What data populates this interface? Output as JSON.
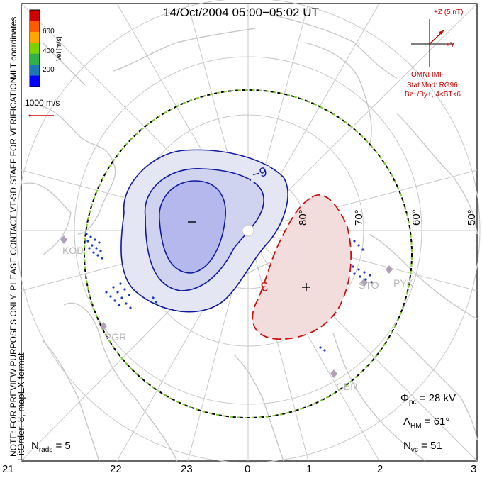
{
  "title": "14/Oct/2004 05:00−05:02 UT",
  "coordinates_label": "MLT coordinates",
  "colorbar": {
    "label": "Vel [m/s]",
    "ticks": [
      "600",
      "400",
      "200"
    ],
    "colors": [
      "#d00000",
      "#ff5a00",
      "#ffa500",
      "#7fd000",
      "#2fb04a",
      "#1f78b4",
      "#0000ff"
    ]
  },
  "scale_vector": {
    "label": "1000 m/s"
  },
  "preview_note": "NOTE: FOR PREVIEW PURPOSES ONLY. PLEASE CONTACT VT-SD STAFF FOR VERIFICATION.",
  "fit_info": "FitOrder: 8, mapEX format",
  "imf": {
    "z_label": "+Z (5 nT)",
    "y_label": "+Y",
    "source": "OMNI IMF",
    "model": "Stat Mod: RG96",
    "condition": "Bz+/By+, 4<BT<6"
  },
  "latitude_labels": [
    "80°",
    "70°",
    "60°",
    "50°"
  ],
  "radars": [
    "KOD",
    "PGR",
    "STO",
    "PYK",
    "GBR"
  ],
  "contours": {
    "negative_label": "−9",
    "positive_label": "3",
    "min_marker": "−",
    "max_marker": "+"
  },
  "stats": {
    "phi_pc": {
      "symbol": "Φ",
      "sub": "pc",
      "value": "= 28 kV"
    },
    "lambda_hm": {
      "symbol": "Λ",
      "sub": "HM",
      "value": "= 61°"
    },
    "n_vc": {
      "symbol": "N",
      "sub": "vc",
      "value": "= 51"
    },
    "n_rads": {
      "symbol": "N",
      "sub": "rads",
      "value": "= 5"
    }
  },
  "mlt_labels": [
    "21",
    "22",
    "23",
    "0",
    "1",
    "2",
    "3"
  ],
  "colors": {
    "negative_fill": "#e4e6f3",
    "negative_fill_inner": "#b4b8ec",
    "negative_line": "#1018a0",
    "positive_fill": "#f3dcdc",
    "positive_line": "#cc1010",
    "coast": "#c8c8c8",
    "grid": "#c8c8c8",
    "hm_boundary": "#7ccc2a"
  }
}
